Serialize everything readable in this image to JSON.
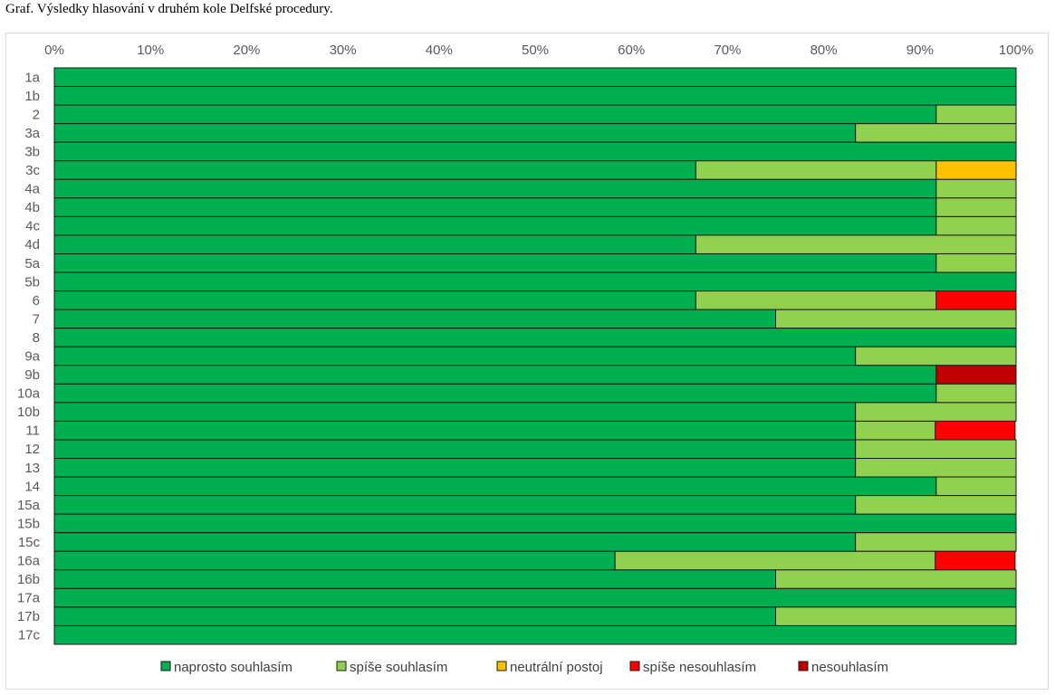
{
  "caption": "Graf. Výsledky hlasování v druhém kole Delfské procedury.",
  "chart_data": {
    "type": "bar",
    "orientation": "horizontal",
    "stacked": "percent",
    "xlim": [
      0,
      100
    ],
    "x_ticks": [
      "0%",
      "10%",
      "20%",
      "30%",
      "40%",
      "50%",
      "60%",
      "70%",
      "80%",
      "90%",
      "100%"
    ],
    "x_axis_position": "top",
    "grid": false,
    "legend_position": "bottom",
    "categories": [
      "1a",
      "1b",
      "2",
      "3a",
      "3b",
      "3c",
      "4a",
      "4b",
      "4c",
      "4d",
      "5a",
      "5b",
      "6",
      "7",
      "8",
      "9a",
      "9b",
      "10a",
      "10b",
      "11",
      "12",
      "13",
      "14",
      "15a",
      "15b",
      "15c",
      "16a",
      "16b",
      "17a",
      "17b",
      "17c"
    ],
    "series": [
      {
        "name": "naprosto souhlasím",
        "color": "#00b050",
        "values": [
          100,
          100,
          91.7,
          83.3,
          100,
          66.7,
          91.7,
          91.7,
          91.7,
          66.7,
          91.7,
          100,
          66.7,
          75,
          100,
          83.3,
          91.7,
          91.7,
          83.3,
          83.3,
          83.3,
          83.3,
          91.7,
          83.3,
          100,
          83.3,
          58.3,
          75,
          100,
          75,
          100
        ]
      },
      {
        "name": "spíše souhlasím",
        "color": "#92d050",
        "values": [
          0,
          0,
          8.3,
          16.7,
          0,
          25,
          8.3,
          8.3,
          8.3,
          33.3,
          8.3,
          0,
          25,
          25,
          0,
          16.7,
          0,
          8.3,
          16.7,
          8.3,
          16.7,
          16.7,
          8.3,
          16.7,
          0,
          16.7,
          33.3,
          25,
          0,
          25,
          0
        ]
      },
      {
        "name": "neutrální postoj",
        "color": "#ffc000",
        "values": [
          0,
          0,
          0,
          0,
          0,
          8.3,
          0,
          0,
          0,
          0,
          0,
          0,
          0,
          0,
          0,
          0,
          0,
          0,
          0,
          0,
          0,
          0,
          0,
          0,
          0,
          0,
          0,
          0,
          0,
          0,
          0
        ]
      },
      {
        "name": "spíše nesouhlasím",
        "color": "#ff0000",
        "values": [
          0,
          0,
          0,
          0,
          0,
          0,
          0,
          0,
          0,
          0,
          0,
          0,
          8.3,
          0,
          0,
          0,
          0,
          0,
          0,
          8.3,
          0,
          0,
          0,
          0,
          0,
          0,
          8.3,
          0,
          0,
          0,
          0
        ]
      },
      {
        "name": "nesouhlasím",
        "color": "#c00000",
        "values": [
          0,
          0,
          0,
          0,
          0,
          0,
          0,
          0,
          0,
          0,
          0,
          0,
          0,
          0,
          0,
          0,
          8.3,
          0,
          0,
          0,
          0,
          0,
          0,
          0,
          0,
          0,
          0,
          0,
          0,
          0,
          0
        ]
      }
    ]
  }
}
